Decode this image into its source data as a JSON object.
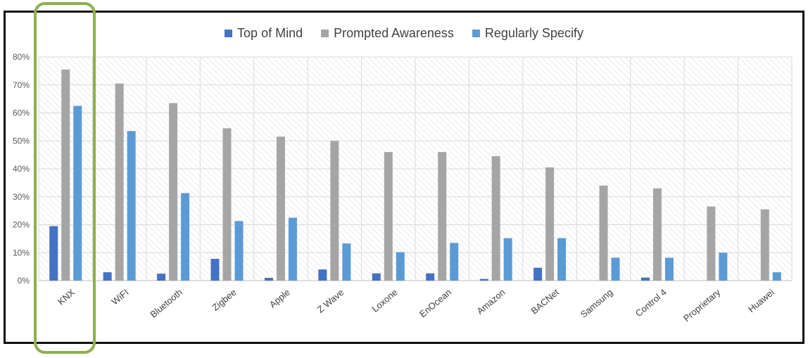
{
  "chart_data": {
    "type": "bar",
    "categories": [
      "KNX",
      "WiFI",
      "Bluetooth",
      "Zigbee",
      "Apple",
      "Z Wave",
      "Loxone",
      "EnOcean",
      "Amazon",
      "BACNet",
      "Samsung",
      "Control 4",
      "Proprietary",
      "Huawei"
    ],
    "series": [
      {
        "name": "Top of Mind",
        "color": "#4472c4",
        "values": [
          19.5,
          3,
          2.5,
          7.8,
          1,
          4,
          2.6,
          2.6,
          0.6,
          4.6,
          0,
          1.1,
          0,
          0
        ]
      },
      {
        "name": "Prompted Awareness",
        "color": "#a5a5a5",
        "values": [
          75.5,
          70.5,
          63.5,
          54.5,
          51.5,
          50,
          46,
          46,
          44.5,
          40.5,
          34,
          33,
          26.5,
          25.5
        ]
      },
      {
        "name": "Regularly Specify",
        "color": "#5b9bd5",
        "values": [
          62.5,
          53.5,
          31.3,
          21.3,
          22.5,
          13.3,
          10.2,
          13.5,
          15.2,
          15.2,
          8.2,
          8.2,
          10,
          3
        ]
      }
    ],
    "yticks": [
      "0%",
      "10%",
      "20%",
      "30%",
      "40%",
      "50%",
      "60%",
      "70%",
      "80%"
    ],
    "ylim": [
      0,
      80
    ],
    "grid": true,
    "legend_position": "top-center",
    "highlighted_category": "KNX",
    "highlight_color": "#8db04e"
  }
}
